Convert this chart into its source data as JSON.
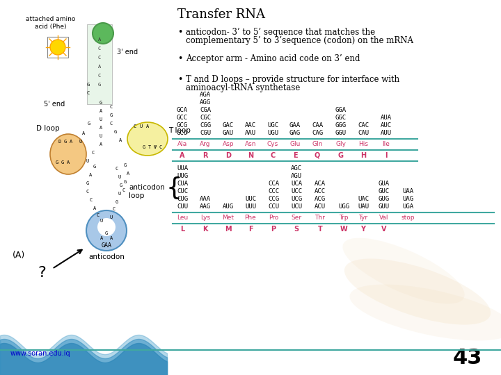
{
  "title": "Transfer RNA",
  "bullets": [
    "anticodon- 3’ to 5’ sequence that matches the complementary 5’ to 3’sequence (codon) on the mRNA",
    "Acceptor arm - Amino acid code on 3’ end",
    "T and D loops – provide structure for interface with aminoacyl-tRNA synthetase"
  ],
  "background_color": "#ffffff",
  "title_color": "#000000",
  "bullet_color": "#000000",
  "header_color": "#cc3366",
  "slide_number": "43",
  "url": "www.soran.edu.iq",
  "amino_acids_upper": [
    "Ala",
    "Arg",
    "Asp",
    "Asn",
    "Cys",
    "Glu",
    "Gln",
    "Gly",
    "His",
    "Ile"
  ],
  "letters_upper": [
    "A",
    "R",
    "D",
    "N",
    "C",
    "E",
    "Q",
    "G",
    "H",
    "I"
  ],
  "amino_acids_lower": [
    "Leu",
    "Lys",
    "Met",
    "Phe",
    "Pro",
    "Ser",
    "Thr",
    "Trp",
    "Tyr",
    "Val",
    "stop"
  ],
  "letters_lower": [
    "L",
    "K",
    "M",
    "F",
    "P",
    "S",
    "T",
    "W",
    "Y",
    "V",
    ""
  ],
  "watermark_color": "#f0d9b5",
  "teal_line_color": "#40a8a0"
}
